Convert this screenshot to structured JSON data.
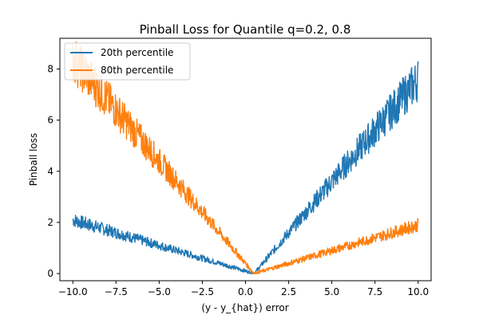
{
  "chart_data": {
    "type": "line",
    "title": "Pinball Loss for Quantile q=0.2, 0.8",
    "xlabel": "(y - y_{hat}) error",
    "ylabel": "Pinball loss",
    "xlim": [
      -10.75,
      10.75
    ],
    "ylim": [
      -0.28,
      9.2
    ],
    "xticks": [
      -10.0,
      -7.5,
      -5.0,
      -2.5,
      0.0,
      2.5,
      5.0,
      7.5,
      10.0
    ],
    "xtick_labels": [
      "−10.0",
      "−7.5",
      "−5.0",
      "−2.5",
      "0.0",
      "2.5",
      "5.0",
      "7.5",
      "10.0"
    ],
    "yticks": [
      0,
      2,
      4,
      6,
      8
    ],
    "ytick_labels": [
      "0",
      "2",
      "4",
      "6",
      "8"
    ],
    "grid": false,
    "legend": "top-left",
    "series": [
      {
        "name": "20th percentile",
        "color": "#1f77b4",
        "x": [
          -10,
          -9,
          -8,
          -7,
          -6,
          -5,
          -4,
          -3,
          -2,
          -1,
          0,
          0.5,
          1,
          2,
          3,
          4,
          5,
          6,
          7,
          8,
          9,
          10
        ],
        "y": [
          2.1,
          1.9,
          1.7,
          1.5,
          1.3,
          1.1,
          0.9,
          0.7,
          0.5,
          0.3,
          0.1,
          0.0,
          0.4,
          1.2,
          2.0,
          2.8,
          3.6,
          4.4,
          5.2,
          6.0,
          6.8,
          7.6
        ]
      },
      {
        "name": "80th percentile",
        "color": "#ff7f0e",
        "x": [
          -10,
          -9,
          -8,
          -7,
          -6,
          -5,
          -4,
          -3,
          -2,
          -1,
          0,
          0.5,
          1,
          2,
          3,
          4,
          5,
          6,
          7,
          8,
          9,
          10
        ],
        "y": [
          8.4,
          7.6,
          6.8,
          6.0,
          5.2,
          4.4,
          3.6,
          2.8,
          2.0,
          1.2,
          0.4,
          0.0,
          0.1,
          0.3,
          0.5,
          0.7,
          0.9,
          1.1,
          1.3,
          1.5,
          1.7,
          1.9
        ]
      }
    ]
  }
}
